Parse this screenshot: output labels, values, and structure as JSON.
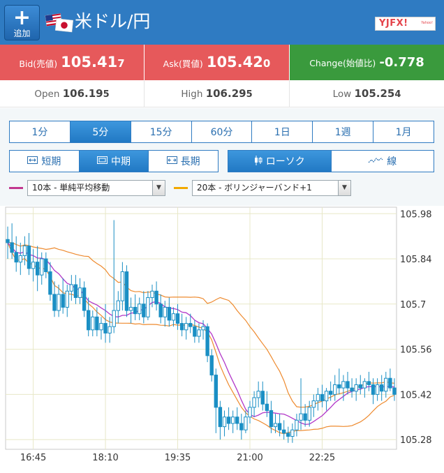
{
  "header": {
    "add_label": "追加",
    "pair_title": "米ドル/円",
    "logo_text": "YJFX!",
    "logo_sub": "Yahoo!"
  },
  "quote": {
    "bid": {
      "label": "Bid(売値)",
      "main": "105.41",
      "tail": "7"
    },
    "ask": {
      "label": "Ask(買値)",
      "main": "105.42",
      "tail": "0"
    },
    "change": {
      "label": "Change(始値比)",
      "value": "-0.778"
    }
  },
  "ohl": {
    "open": {
      "label": "Open",
      "main": "106.19",
      "tail": "5"
    },
    "high": {
      "label": "High",
      "main": "106.29",
      "tail": "5"
    },
    "low": {
      "label": "Low",
      "main": "105.25",
      "tail": "4"
    }
  },
  "timeframes": [
    "1分",
    "5分",
    "15分",
    "60分",
    "1日",
    "1週",
    "1月"
  ],
  "timeframe_active": "5分",
  "terms": [
    {
      "label": "短期",
      "icon": "short-range-icon"
    },
    {
      "label": "中期",
      "icon": "mid-range-icon"
    },
    {
      "label": "長期",
      "icon": "long-range-icon"
    }
  ],
  "term_active": "中期",
  "chart_types": [
    {
      "label": "ローソク",
      "icon": "candlestick-icon"
    },
    {
      "label": "線",
      "icon": "line-chart-icon"
    }
  ],
  "chart_type_active": "ローソク",
  "indicators": [
    {
      "label": "10本 - 単純平均移動",
      "color": "#c2388f"
    },
    {
      "label": "20本 - ボリンジャーバンド+1",
      "color": "#f2a900"
    }
  ],
  "colors": {
    "header": "#2f7bc2",
    "bid_ask": "#e6595b",
    "change": "#3a9a3d",
    "candle": "#1a8fc4",
    "sma": "#b237c8",
    "bollinger": "#ee8a2e"
  },
  "chart_data": {
    "type": "candlestick",
    "y_ticks": [
      "105.98",
      "105.84",
      "105.7",
      "105.56",
      "105.42",
      "105.28"
    ],
    "y_tick_values": [
      105.98,
      105.84,
      105.7,
      105.56,
      105.42,
      105.28
    ],
    "ylim": [
      105.25,
      106.0
    ],
    "x_ticks": [
      "16:45",
      "18:10",
      "19:35",
      "21:00",
      "22:25"
    ],
    "x_tick_index": [
      6,
      23,
      40,
      57,
      74
    ],
    "candle_count": 92,
    "ohlc": [
      [
        105.9,
        105.94,
        105.84,
        105.89
      ],
      [
        105.89,
        105.95,
        105.84,
        105.86
      ],
      [
        105.86,
        105.91,
        105.8,
        105.83
      ],
      [
        105.83,
        105.89,
        105.79,
        105.85
      ],
      [
        105.85,
        105.91,
        105.82,
        105.88
      ],
      [
        105.88,
        105.92,
        105.79,
        105.81
      ],
      [
        105.81,
        105.87,
        105.77,
        105.83
      ],
      [
        105.83,
        105.88,
        105.74,
        105.79
      ],
      [
        105.79,
        105.86,
        105.76,
        105.84
      ],
      [
        105.84,
        105.86,
        105.78,
        105.8
      ],
      [
        105.8,
        105.83,
        105.71,
        105.73
      ],
      [
        105.73,
        105.77,
        105.66,
        105.68
      ],
      [
        105.68,
        105.76,
        105.66,
        105.73
      ],
      [
        105.73,
        105.78,
        105.67,
        105.69
      ],
      [
        105.69,
        105.76,
        105.66,
        105.74
      ],
      [
        105.74,
        105.79,
        105.71,
        105.76
      ],
      [
        105.76,
        105.79,
        105.7,
        105.72
      ],
      [
        105.72,
        105.78,
        105.7,
        105.75
      ],
      [
        105.75,
        105.77,
        105.66,
        105.68
      ],
      [
        105.68,
        105.72,
        105.6,
        105.62
      ],
      [
        105.62,
        105.68,
        105.6,
        105.66
      ],
      [
        105.66,
        105.69,
        105.6,
        105.62
      ],
      [
        105.62,
        105.66,
        105.59,
        105.64
      ],
      [
        105.64,
        105.7,
        105.58,
        105.61
      ],
      [
        105.61,
        105.66,
        105.58,
        105.63
      ],
      [
        105.63,
        105.96,
        105.61,
        105.68
      ],
      [
        105.68,
        105.74,
        105.64,
        105.71
      ],
      [
        105.71,
        105.83,
        105.68,
        105.8
      ],
      [
        105.8,
        105.82,
        105.66,
        105.68
      ],
      [
        105.68,
        105.72,
        105.64,
        105.69
      ],
      [
        105.69,
        105.73,
        105.65,
        105.67
      ],
      [
        105.67,
        105.72,
        105.65,
        105.7
      ],
      [
        105.7,
        105.74,
        105.64,
        105.66
      ],
      [
        105.66,
        105.74,
        105.65,
        105.72
      ],
      [
        105.72,
        105.76,
        105.69,
        105.74
      ],
      [
        105.74,
        105.77,
        105.68,
        105.7
      ],
      [
        105.7,
        105.73,
        105.64,
        105.66
      ],
      [
        105.66,
        105.71,
        105.63,
        105.69
      ],
      [
        105.69,
        105.72,
        105.63,
        105.65
      ],
      [
        105.65,
        105.69,
        105.63,
        105.67
      ],
      [
        105.67,
        105.7,
        105.62,
        105.64
      ],
      [
        105.64,
        105.67,
        105.6,
        105.62
      ],
      [
        105.62,
        105.66,
        105.59,
        105.64
      ],
      [
        105.64,
        105.67,
        105.61,
        105.63
      ],
      [
        105.63,
        105.65,
        105.58,
        105.6
      ],
      [
        105.6,
        105.64,
        105.58,
        105.62
      ],
      [
        105.62,
        105.65,
        105.59,
        105.63
      ],
      [
        105.63,
        105.64,
        105.52,
        105.54
      ],
      [
        105.54,
        105.56,
        105.46,
        105.48
      ],
      [
        105.48,
        105.5,
        105.3,
        105.38
      ],
      [
        105.38,
        105.4,
        105.28,
        105.32
      ],
      [
        105.32,
        105.37,
        105.29,
        105.35
      ],
      [
        105.35,
        105.38,
        105.31,
        105.33
      ],
      [
        105.33,
        105.37,
        105.3,
        105.35
      ],
      [
        105.35,
        105.38,
        105.31,
        105.33
      ],
      [
        105.33,
        105.36,
        105.28,
        105.31
      ],
      [
        105.31,
        105.37,
        105.3,
        105.35
      ],
      [
        105.35,
        105.4,
        105.33,
        105.38
      ],
      [
        105.38,
        105.43,
        105.35,
        105.41
      ],
      [
        105.41,
        105.46,
        105.38,
        105.43
      ],
      [
        105.43,
        105.46,
        105.37,
        105.39
      ],
      [
        105.39,
        105.43,
        105.35,
        105.37
      ],
      [
        105.37,
        105.4,
        105.3,
        105.32
      ],
      [
        105.32,
        105.36,
        105.3,
        105.33
      ],
      [
        105.33,
        105.36,
        105.29,
        105.31
      ],
      [
        105.31,
        105.34,
        105.28,
        105.3
      ],
      [
        105.3,
        105.32,
        105.27,
        105.29
      ],
      [
        105.29,
        105.33,
        105.27,
        105.31
      ],
      [
        105.31,
        105.36,
        105.29,
        105.34
      ],
      [
        105.34,
        105.47,
        105.31,
        105.36
      ],
      [
        105.36,
        105.39,
        105.32,
        105.34
      ],
      [
        105.34,
        105.4,
        105.32,
        105.38
      ],
      [
        105.38,
        105.42,
        105.35,
        105.4
      ],
      [
        105.4,
        105.44,
        105.37,
        105.42
      ],
      [
        105.42,
        105.45,
        105.38,
        105.4
      ],
      [
        105.4,
        105.44,
        105.37,
        105.43
      ],
      [
        105.43,
        105.46,
        105.4,
        105.42
      ],
      [
        105.42,
        105.48,
        105.4,
        105.45
      ],
      [
        105.45,
        105.5,
        105.42,
        105.44
      ],
      [
        105.44,
        105.48,
        105.4,
        105.46
      ],
      [
        105.46,
        105.49,
        105.42,
        105.44
      ],
      [
        105.44,
        105.47,
        105.41,
        105.43
      ],
      [
        105.43,
        105.47,
        105.4,
        105.45
      ],
      [
        105.45,
        105.48,
        105.42,
        105.44
      ],
      [
        105.44,
        105.47,
        105.41,
        105.46
      ],
      [
        105.46,
        105.49,
        105.43,
        105.45
      ],
      [
        105.45,
        105.47,
        105.39,
        105.42
      ],
      [
        105.42,
        105.47,
        105.4,
        105.45
      ],
      [
        105.45,
        105.48,
        105.4,
        105.43
      ],
      [
        105.43,
        105.49,
        105.41,
        105.47
      ],
      [
        105.47,
        105.5,
        105.43,
        105.44
      ],
      [
        105.44,
        105.47,
        105.4,
        105.42
      ]
    ],
    "series": [
      {
        "type": "sma",
        "period": 10
      },
      {
        "type": "bollinger",
        "period": 20,
        "sigma": 1
      }
    ],
    "grid": true,
    "y_axis": "right"
  }
}
